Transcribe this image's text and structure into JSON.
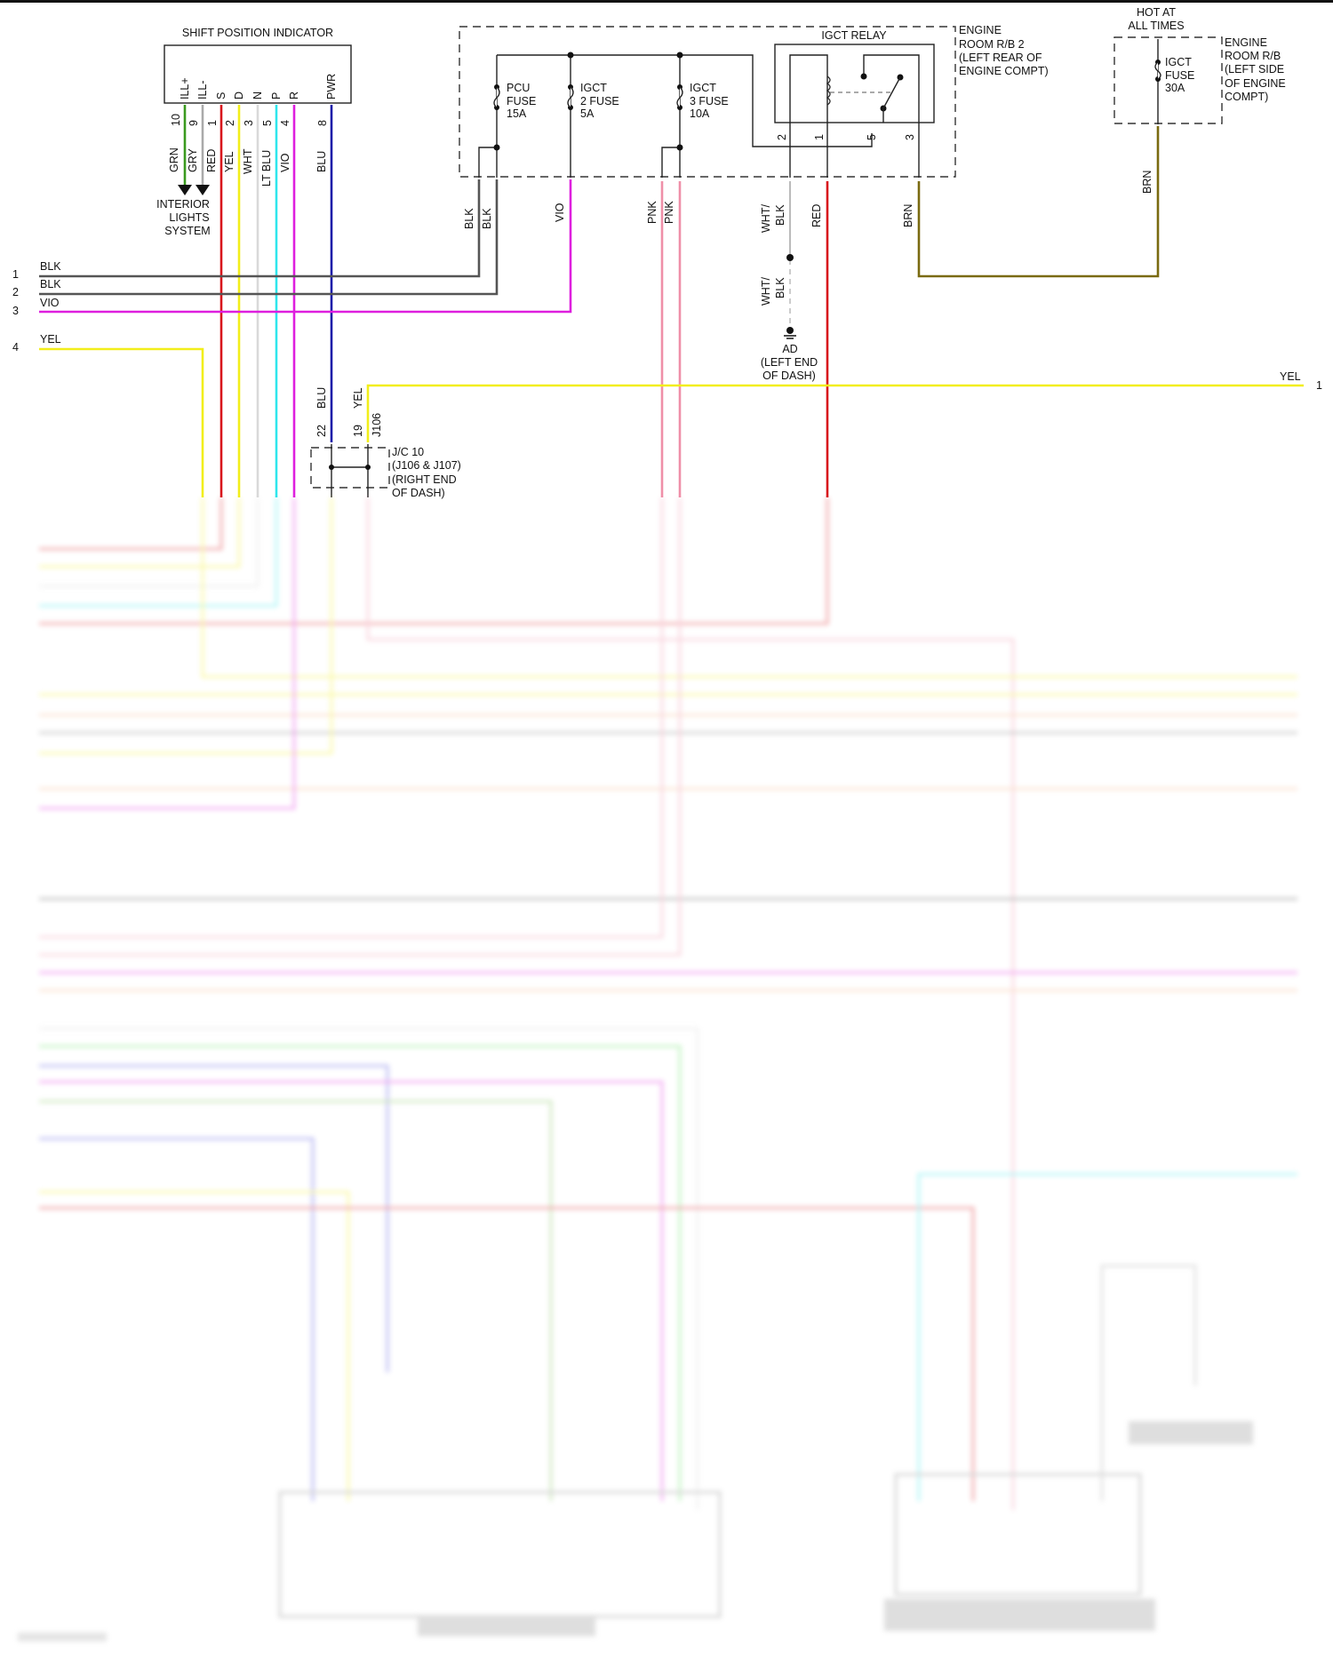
{
  "shift_indicator": {
    "title": "SHIFT POSITION INDICATOR",
    "pins": [
      "ILL+",
      "ILL-",
      "S",
      "D",
      "N",
      "P",
      "R",
      "PWR"
    ],
    "pin_numbers": [
      "10",
      "9",
      "1",
      "2",
      "3",
      "5",
      "4",
      "8"
    ],
    "wire_colors": [
      "GRN",
      "GRY",
      "RED",
      "YEL",
      "WHT",
      "LT BLU",
      "VIO",
      "BLU"
    ],
    "interior_lights": [
      "INTERIOR",
      "LIGHTS",
      "SYSTEM"
    ]
  },
  "left_connectors": [
    {
      "num": "1",
      "color": "BLK"
    },
    {
      "num": "2",
      "color": "BLK"
    },
    {
      "num": "3",
      "color": "VIO"
    },
    {
      "num": "4",
      "color": "YEL"
    }
  ],
  "engine_rb2": {
    "label": [
      "ENGINE",
      "ROOM R/B 2",
      "(LEFT REAR OF",
      "ENGINE COMPT)"
    ],
    "fuses": [
      {
        "lines": [
          "PCU",
          "FUSE",
          "15A"
        ]
      },
      {
        "lines": [
          "IGCT",
          "2 FUSE",
          "5A"
        ]
      },
      {
        "lines": [
          "IGCT",
          "3 FUSE",
          "10A"
        ]
      }
    ],
    "relay": {
      "title": "IGCT RELAY",
      "pins": [
        "2",
        "1",
        "5",
        "3"
      ]
    },
    "wire_colors": [
      "BLK",
      "BLK",
      "VIO",
      "PNK",
      "PNK",
      "WHT/",
      "BLK",
      "RED",
      "BRN"
    ]
  },
  "hot_box": {
    "header": [
      "HOT AT",
      "ALL TIMES"
    ],
    "fuse": [
      "IGCT",
      "FUSE",
      "30A"
    ],
    "label": [
      "ENGINE",
      "ROOM R/B",
      "(LEFT SIDE",
      "OF ENGINE",
      "COMPT)"
    ],
    "wire_color": "BRN"
  },
  "ground": {
    "wire_color": [
      "WHT/",
      "BLK"
    ],
    "label": [
      "AD",
      "(LEFT END",
      "OF DASH)"
    ]
  },
  "junction": {
    "label": [
      "J/C 10",
      "(J106 & J107)",
      "(RIGHT END",
      "OF DASH)"
    ],
    "connector": "J106",
    "pins": [
      "22",
      "19"
    ],
    "wire_colors": [
      "BLU",
      "YEL"
    ]
  },
  "right_connector": {
    "color": "YEL",
    "num": "1"
  },
  "colors": {
    "GRN": "#3a9a1e",
    "GRY": "#aaaaaa",
    "RED": "#d8141c",
    "YEL": "#f2ee1a",
    "WHT": "#d9d9d9",
    "LT BLU": "#2ee6ec",
    "VIO": "#de1ede",
    "BLU": "#1a1aa8",
    "BLK": "#555555",
    "PNK": "#ef8fa8",
    "BRN": "#7a6a10"
  }
}
